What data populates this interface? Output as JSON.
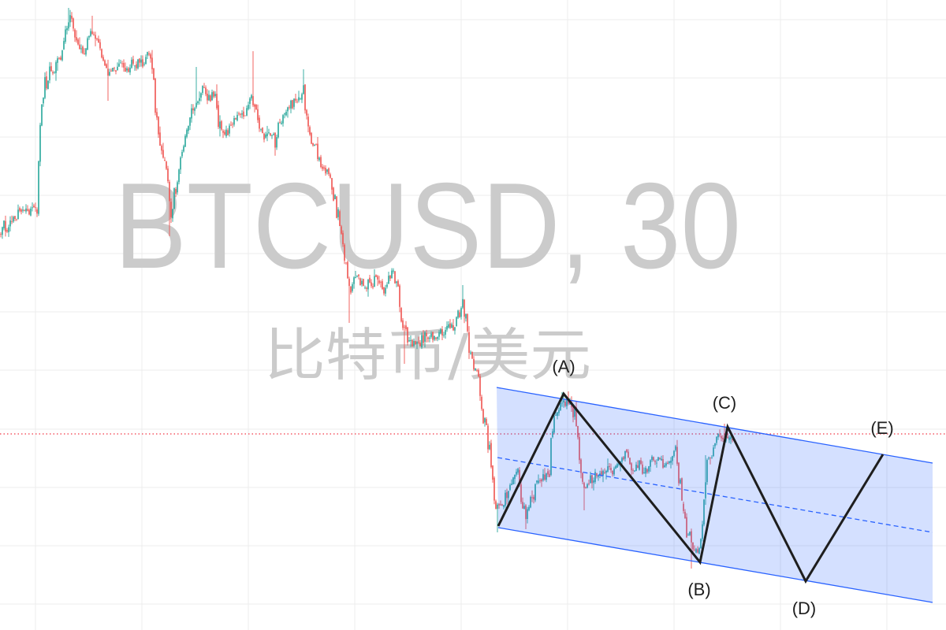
{
  "chart_data": {
    "type": "candlestick",
    "title": "BTCUSD, 30",
    "subtitle": "比特币/美元",
    "grid": true,
    "annotations": [
      "(A)",
      "(B)",
      "(C)",
      "(D)",
      "(E)"
    ],
    "colors": {
      "candle_up": "#26a69a",
      "candle_down": "#ef5350",
      "watermark": "#cbcbcb",
      "last_price_line": "#f23645",
      "channel_line": "#2962ff",
      "channel_fill": "rgba(41, 98, 255, 0.2)",
      "wave_line": "#1e1e1e",
      "grid": "#ececec"
    }
  }
}
